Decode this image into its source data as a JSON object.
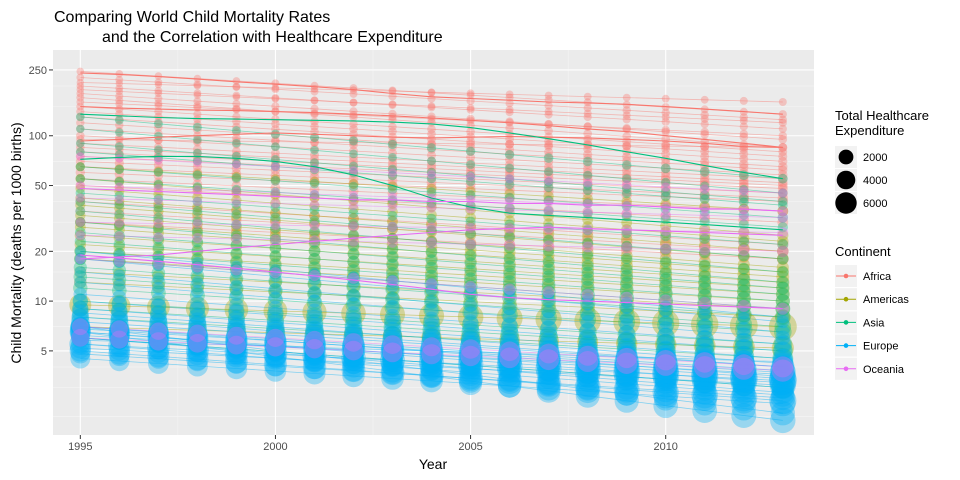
{
  "chart_data": {
    "type": "scatter",
    "title_line1": "Comparing World Child Mortality Rates",
    "title_line2": "and the Correlation with Healthcare Expenditure",
    "xlabel": "Year",
    "ylabel": "Child Mortality (deaths per 1000 births)",
    "x_scale": "linear",
    "y_scale": "log10",
    "xlim": [
      1994.3,
      2013.8
    ],
    "ylim": [
      1.55,
      330
    ],
    "x_ticks": [
      1995,
      2000,
      2005,
      2010
    ],
    "x_tick_labels": [
      "1995",
      "2000",
      "2005",
      "2010"
    ],
    "y_ticks": [
      5,
      10,
      20,
      50,
      100,
      250
    ],
    "y_tick_labels": [
      "5",
      "10",
      "20",
      "50",
      "100",
      "250"
    ],
    "y_minor_ticks": [
      2,
      3,
      4,
      7,
      15,
      30,
      40,
      70,
      150,
      200
    ],
    "grid": true,
    "years": [
      1995,
      1996,
      1997,
      1998,
      1999,
      2000,
      2001,
      2002,
      2003,
      2004,
      2005,
      2006,
      2007,
      2008,
      2009,
      2010,
      2011,
      2012,
      2013
    ],
    "size_legend": {
      "title_line1": "Total Healthcare",
      "title_line2": " Expenditure",
      "values": [
        2000,
        4000,
        6000
      ],
      "labels": [
        "2000",
        "4000",
        "6000"
      ]
    },
    "color_legend": {
      "title": "Continent",
      "placement": "right",
      "entries": [
        {
          "label": "Africa",
          "color": "#F8766D"
        },
        {
          "label": "Americas",
          "color": "#A3A500"
        },
        {
          "label": "Asia",
          "color": "#00BF7D"
        },
        {
          "label": "Europe",
          "color": "#00B0F6"
        },
        {
          "label": "Oceania",
          "color": "#E76BF3"
        }
      ]
    },
    "series": [
      {
        "continent": "Africa",
        "start": 245,
        "end": 135,
        "spend": 60
      },
      {
        "continent": "Africa",
        "start": 225,
        "end": 125,
        "spend": 80
      },
      {
        "continent": "Africa",
        "start": 210,
        "end": 160,
        "spend": 50
      },
      {
        "continent": "Africa",
        "start": 200,
        "end": 110,
        "spend": 70
      },
      {
        "continent": "Africa",
        "start": 190,
        "end": 120,
        "spend": 60
      },
      {
        "continent": "Africa",
        "start": 180,
        "end": 95,
        "spend": 90
      },
      {
        "continent": "Africa",
        "start": 170,
        "end": 85,
        "spend": 100
      },
      {
        "continent": "Africa",
        "start": 160,
        "end": 100,
        "spend": 80
      },
      {
        "continent": "Africa",
        "start": 150,
        "end": 80,
        "spend": 110
      },
      {
        "continent": "Africa",
        "start": 140,
        "end": 75,
        "spend": 120
      },
      {
        "continent": "Africa",
        "start": 130,
        "end": 70,
        "spend": 130
      },
      {
        "continent": "Africa",
        "start": 120,
        "end": 65,
        "spend": 150
      },
      {
        "continent": "Africa",
        "start": 110,
        "end": 62,
        "spend": 140
      },
      {
        "continent": "Africa",
        "start": 100,
        "end": 58,
        "spend": 160
      },
      {
        "continent": "Africa",
        "start": 95,
        "end": 85,
        "spend": 120
      },
      {
        "continent": "Africa",
        "start": 90,
        "end": 55,
        "spend": 170
      },
      {
        "continent": "Africa",
        "start": 85,
        "end": 52,
        "spend": 180
      },
      {
        "continent": "Africa",
        "start": 80,
        "end": 50,
        "spend": 200
      },
      {
        "continent": "Africa",
        "start": 75,
        "end": 48,
        "spend": 220
      },
      {
        "continent": "Africa",
        "start": 70,
        "end": 45,
        "spend": 240
      },
      {
        "continent": "Africa",
        "start": 65,
        "end": 42,
        "spend": 260
      },
      {
        "continent": "Africa",
        "start": 60,
        "end": 40,
        "spend": 280
      },
      {
        "continent": "Africa",
        "start": 55,
        "end": 35,
        "spend": 300
      },
      {
        "continent": "Africa",
        "start": 50,
        "end": 30,
        "spend": 320
      },
      {
        "continent": "Africa",
        "start": 40,
        "end": 22,
        "spend": 400
      },
      {
        "continent": "Africa",
        "start": 35,
        "end": 20,
        "spend": 420
      },
      {
        "continent": "Africa",
        "start": 30,
        "end": 18,
        "spend": 450
      },
      {
        "continent": "Americas",
        "start": 65,
        "end": 35,
        "spend": 300
      },
      {
        "continent": "Americas",
        "start": 55,
        "end": 25,
        "spend": 350
      },
      {
        "continent": "Americas",
        "start": 48,
        "end": 23,
        "spend": 380
      },
      {
        "continent": "Americas",
        "start": 42,
        "end": 20,
        "spend": 420
      },
      {
        "continent": "Americas",
        "start": 38,
        "end": 18,
        "spend": 450
      },
      {
        "continent": "Americas",
        "start": 33,
        "end": 16,
        "spend": 500
      },
      {
        "continent": "Americas",
        "start": 30,
        "end": 15,
        "spend": 550
      },
      {
        "continent": "Americas",
        "start": 28,
        "end": 14,
        "spend": 600
      },
      {
        "continent": "Americas",
        "start": 25,
        "end": 13,
        "spend": 700
      },
      {
        "continent": "Americas",
        "start": 22,
        "end": 12,
        "spend": 750
      },
      {
        "continent": "Americas",
        "start": 20,
        "end": 11,
        "spend": 800
      },
      {
        "continent": "Americas",
        "start": 18,
        "end": 10,
        "spend": 900
      },
      {
        "continent": "Americas",
        "start": 15,
        "end": 9,
        "spend": 1000
      },
      {
        "continent": "Americas",
        "start": 13,
        "end": 8,
        "spend": 1100
      },
      {
        "continent": "Americas",
        "start": 9.5,
        "end": 7,
        "spend": 6500
      },
      {
        "continent": "Americas",
        "start": 7,
        "end": 5.2,
        "spend": 3500
      },
      {
        "continent": "Asia",
        "start": 130,
        "end": 55,
        "spend": 200
      },
      {
        "continent": "Asia",
        "start": 110,
        "end": 45,
        "spend": 150
      },
      {
        "continent": "Asia",
        "start": 90,
        "end": 40,
        "spend": 180
      },
      {
        "continent": "Asia",
        "start": 80,
        "end": 38,
        "spend": 200
      },
      {
        "continent": "Asia",
        "start": 65,
        "end": 32,
        "spend": 250
      },
      {
        "continent": "Asia",
        "start": 55,
        "end": 28,
        "spend": 250
      },
      {
        "continent": "Asia",
        "start": 45,
        "end": 22,
        "spend": 300
      },
      {
        "continent": "Asia",
        "start": 40,
        "end": 18,
        "spend": 350
      },
      {
        "continent": "Asia",
        "start": 35,
        "end": 15,
        "spend": 400
      },
      {
        "continent": "Asia",
        "start": 30,
        "end": 13,
        "spend": 500
      },
      {
        "continent": "Asia",
        "start": 26,
        "end": 12,
        "spend": 600
      },
      {
        "continent": "Asia",
        "start": 23,
        "end": 11,
        "spend": 700
      },
      {
        "continent": "Asia",
        "start": 20,
        "end": 10,
        "spend": 900
      },
      {
        "continent": "Asia",
        "start": 18,
        "end": 9,
        "spend": 1100
      },
      {
        "continent": "Asia",
        "start": 16,
        "end": 8,
        "spend": 1300
      },
      {
        "continent": "Asia",
        "start": 14,
        "end": 7,
        "spend": 1500
      },
      {
        "continent": "Asia",
        "start": 12,
        "end": 6.5,
        "spend": 1800
      },
      {
        "continent": "Asia",
        "start": 10,
        "end": 5.5,
        "spend": 2200
      },
      {
        "continent": "Asia",
        "start": 9,
        "end": 5,
        "spend": 2600
      },
      {
        "continent": "Asia",
        "start": 8,
        "end": 4.5,
        "spend": 3000
      },
      {
        "continent": "Asia",
        "start": 6,
        "end": 3,
        "spend": 3500
      },
      {
        "continent": "Europe",
        "start": 20,
        "end": 8,
        "spend": 500
      },
      {
        "continent": "Europe",
        "start": 18,
        "end": 7.5,
        "spend": 600
      },
      {
        "continent": "Europe",
        "start": 15,
        "end": 6.5,
        "spend": 800
      },
      {
        "continent": "Europe",
        "start": 13,
        "end": 6,
        "spend": 1000
      },
      {
        "continent": "Europe",
        "start": 11,
        "end": 5.5,
        "spend": 1500
      },
      {
        "continent": "Europe",
        "start": 10,
        "end": 5,
        "spend": 2000
      },
      {
        "continent": "Europe",
        "start": 9,
        "end": 4.5,
        "spend": 2500
      },
      {
        "continent": "Europe",
        "start": 8.5,
        "end": 4.2,
        "spend": 3000
      },
      {
        "continent": "Europe",
        "start": 8,
        "end": 4,
        "spend": 3500
      },
      {
        "continent": "Europe",
        "start": 7.5,
        "end": 4,
        "spend": 4000
      },
      {
        "continent": "Europe",
        "start": 7,
        "end": 3.8,
        "spend": 4500
      },
      {
        "continent": "Europe",
        "start": 7,
        "end": 3.5,
        "spend": 5000
      },
      {
        "continent": "Europe",
        "start": 6.8,
        "end": 3.7,
        "spend": 5500
      },
      {
        "continent": "Europe",
        "start": 6.5,
        "end": 3.4,
        "spend": 6000
      },
      {
        "continent": "Europe",
        "start": 6.5,
        "end": 3.2,
        "spend": 5000
      },
      {
        "continent": "Europe",
        "start": 6.2,
        "end": 3.6,
        "spend": 4500
      },
      {
        "continent": "Europe",
        "start": 6,
        "end": 3,
        "spend": 4000
      },
      {
        "continent": "Europe",
        "start": 6,
        "end": 2.8,
        "spend": 3500
      },
      {
        "continent": "Europe",
        "start": 5.8,
        "end": 4.3,
        "spend": 3000
      },
      {
        "continent": "Europe",
        "start": 5.5,
        "end": 3.3,
        "spend": 6500
      },
      {
        "continent": "Europe",
        "start": 5.5,
        "end": 2.7,
        "spend": 4000
      },
      {
        "continent": "Europe",
        "start": 5.2,
        "end": 3.1,
        "spend": 5500
      },
      {
        "continent": "Europe",
        "start": 5,
        "end": 2.5,
        "spend": 6000
      },
      {
        "continent": "Europe",
        "start": 4.8,
        "end": 2.6,
        "spend": 4500
      },
      {
        "continent": "Europe",
        "start": 4.5,
        "end": 2.4,
        "spend": 5000
      },
      {
        "continent": "Europe",
        "start": 7,
        "end": 2.1,
        "spend": 4500
      },
      {
        "continent": "Europe",
        "start": 6.5,
        "end": 1.9,
        "spend": 5000
      },
      {
        "continent": "Oceania",
        "start": 75,
        "end": 45,
        "spend": 150
      },
      {
        "continent": "Oceania",
        "start": 50,
        "end": 35,
        "spend": 200
      },
      {
        "continent": "Oceania",
        "start": 42,
        "end": 32,
        "spend": 250
      },
      {
        "continent": "Oceania",
        "start": 30,
        "end": 26,
        "spend": 300
      },
      {
        "continent": "Oceania",
        "start": 25,
        "end": 20,
        "spend": 400
      },
      {
        "continent": "Oceania",
        "start": 18,
        "end": 9,
        "spend": 500
      },
      {
        "continent": "Oceania",
        "start": 7,
        "end": 4,
        "spend": 3000
      },
      {
        "continent": "Oceania",
        "start": 6,
        "end": 3.8,
        "spend": 3500
      }
    ],
    "smooth_trends": [
      {
        "continent": "Africa",
        "values": [
          240,
          235,
          228,
          220,
          212,
          205,
          198,
          190,
          180,
          172,
          168,
          164,
          160,
          158,
          155,
          150,
          145,
          140,
          135
        ]
      },
      {
        "continent": "Africa",
        "values": [
          150,
          147,
          145,
          143,
          142,
          140,
          138,
          135,
          132,
          128,
          124,
          120,
          115,
          110,
          106,
          100,
          95,
          90,
          85
        ]
      },
      {
        "continent": "Africa",
        "values": [
          93,
          95,
          98,
          100,
          102,
          104,
          102,
          100,
          98,
          97,
          98,
          99,
          98,
          97,
          95,
          93,
          90,
          86,
          85
        ]
      },
      {
        "continent": "Asia",
        "values": [
          135,
          132,
          129,
          127,
          126,
          125,
          124,
          123,
          121,
          118,
          112,
          104,
          96,
          88,
          80,
          73,
          66,
          60,
          55
        ]
      },
      {
        "continent": "Asia",
        "values": [
          72,
          74,
          75,
          75,
          73,
          70,
          65,
          58,
          50,
          42,
          37,
          34,
          33,
          32,
          31,
          30,
          29,
          28,
          27
        ]
      },
      {
        "continent": "Oceania",
        "values": [
          48,
          47,
          46,
          45,
          44,
          43,
          42,
          41,
          41,
          40,
          40,
          39,
          39,
          38,
          38,
          37,
          36,
          36,
          35
        ]
      },
      {
        "continent": "Oceania",
        "values": [
          18,
          18.5,
          19,
          20,
          21,
          22,
          23,
          24,
          25,
          26,
          27,
          27.5,
          28,
          27.5,
          27,
          26.5,
          26,
          25.5,
          25
        ]
      },
      {
        "continent": "Oceania",
        "values": [
          19,
          18.2,
          17.4,
          16.6,
          15.8,
          15,
          14.2,
          13.4,
          12.6,
          11.8,
          11,
          10.5,
          10.2,
          10,
          9.8,
          9.6,
          9.4,
          9.2,
          9
        ]
      }
    ]
  }
}
